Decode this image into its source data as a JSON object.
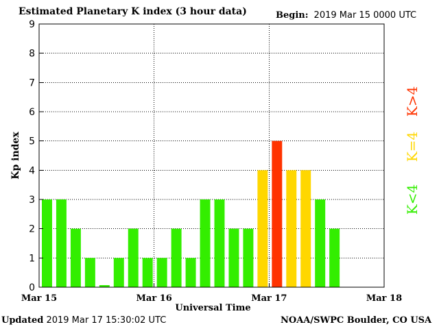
{
  "header": {
    "title": "Estimated Planetary K index (3 hour data)",
    "begin_label": "Begin:",
    "begin_value": "2019 Mar 15 0000 UTC"
  },
  "footer": {
    "updated_label": "Updated",
    "updated_value": "2019 Mar 17 15:30:02 UTC",
    "source": "NOAA/SWPC Boulder, CO USA"
  },
  "legend": [
    {
      "label": "K>4",
      "color": "#ff3300"
    },
    {
      "label": "K=4",
      "color": "#ffd700"
    },
    {
      "label": "K<4",
      "color": "#33ee00"
    }
  ],
  "colors": {
    "low": "#33ee00",
    "moderate": "#ffd700",
    "high": "#ff3300"
  },
  "chart_data": {
    "type": "bar",
    "ylabel": "Kp index",
    "xlabel": "Universal Time",
    "ylim": [
      0,
      9
    ],
    "yticks": [
      "0",
      "1",
      "2",
      "3",
      "4",
      "5",
      "6",
      "7",
      "8",
      "9"
    ],
    "xticks": [
      "Mar 15",
      "Mar 16",
      "Mar 17",
      "Mar 18"
    ],
    "periods_total": 24,
    "grid": true,
    "values": [
      3,
      3,
      2,
      1,
      0.07,
      1,
      2,
      1,
      1,
      2,
      1,
      3,
      3,
      2,
      2,
      4,
      5,
      4,
      4,
      3,
      2
    ]
  }
}
